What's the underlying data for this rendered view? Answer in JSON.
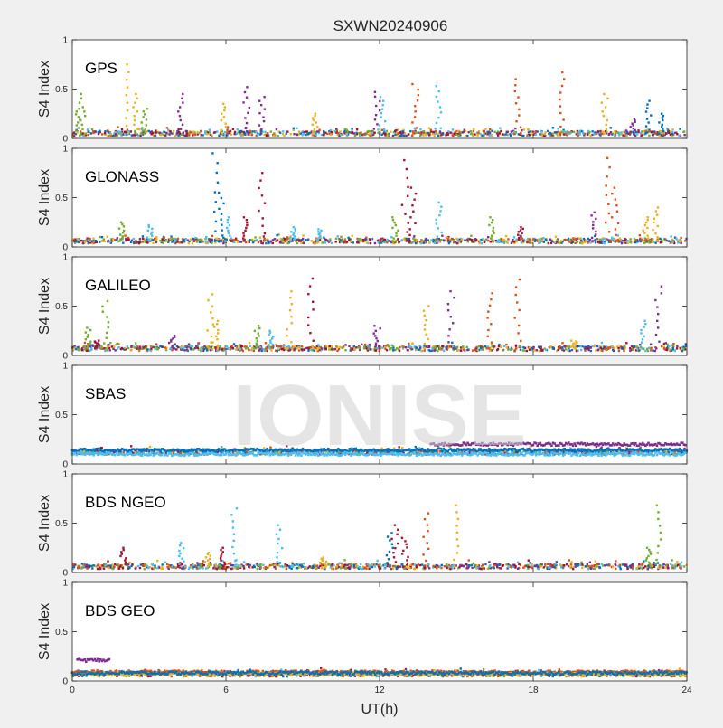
{
  "figure": {
    "title": "SXWN20240906",
    "xlabel": "UT(h)",
    "watermark": "IONISE"
  },
  "colors": [
    "#0072bd",
    "#d95319",
    "#edb120",
    "#7e2f8e",
    "#77ac30",
    "#4dbeee",
    "#a2142f"
  ],
  "chart_data": [
    {
      "type": "scatter",
      "name": "GPS",
      "ylabel": "S4 Index",
      "xlim": [
        0,
        24
      ],
      "ylim": [
        0,
        1
      ],
      "xticks": [
        0,
        6,
        12,
        18,
        24
      ],
      "yticks": [
        0,
        0.5,
        1
      ],
      "baseline": 0.05,
      "spikes": [
        {
          "x": 0.4,
          "y": 0.45,
          "c": 4
        },
        {
          "x": 0.2,
          "y": 0.3,
          "c": 4
        },
        {
          "x": 2.1,
          "y": 0.75,
          "c": 2
        },
        {
          "x": 2.5,
          "y": 0.45,
          "c": 2
        },
        {
          "x": 2.8,
          "y": 0.3,
          "c": 4
        },
        {
          "x": 4.2,
          "y": 0.45,
          "c": 3
        },
        {
          "x": 5.9,
          "y": 0.35,
          "c": 2
        },
        {
          "x": 6.8,
          "y": 0.52,
          "c": 3
        },
        {
          "x": 7.4,
          "y": 0.42,
          "c": 3
        },
        {
          "x": 9.5,
          "y": 0.25,
          "c": 2
        },
        {
          "x": 11.9,
          "y": 0.47,
          "c": 3
        },
        {
          "x": 12.1,
          "y": 0.42,
          "c": 5
        },
        {
          "x": 13.4,
          "y": 0.55,
          "c": 1
        },
        {
          "x": 14.3,
          "y": 0.53,
          "c": 5
        },
        {
          "x": 17.4,
          "y": 0.6,
          "c": 1
        },
        {
          "x": 19.1,
          "y": 0.67,
          "c": 1
        },
        {
          "x": 20.8,
          "y": 0.45,
          "c": 2
        },
        {
          "x": 22.5,
          "y": 0.38,
          "c": 0
        },
        {
          "x": 23.0,
          "y": 0.25,
          "c": 0
        },
        {
          "x": 21.9,
          "y": 0.2,
          "c": 3
        }
      ]
    },
    {
      "type": "scatter",
      "name": "GLONASS",
      "ylabel": "S4 Index",
      "xlim": [
        0,
        24
      ],
      "ylim": [
        0,
        1
      ],
      "xticks": [
        0,
        6,
        12,
        18,
        24
      ],
      "yticks": [
        0,
        0.5,
        1
      ],
      "baseline": 0.06,
      "spikes": [
        {
          "x": 5.6,
          "y": 0.95,
          "c": 0
        },
        {
          "x": 5.8,
          "y": 0.55,
          "c": 0
        },
        {
          "x": 6.1,
          "y": 0.3,
          "c": 5
        },
        {
          "x": 6.7,
          "y": 0.3,
          "c": 6
        },
        {
          "x": 7.4,
          "y": 0.75,
          "c": 6
        },
        {
          "x": 8.6,
          "y": 0.2,
          "c": 5
        },
        {
          "x": 9.6,
          "y": 0.18,
          "c": 5
        },
        {
          "x": 12.6,
          "y": 0.3,
          "c": 4
        },
        {
          "x": 13.0,
          "y": 0.88,
          "c": 6
        },
        {
          "x": 13.3,
          "y": 0.6,
          "c": 6
        },
        {
          "x": 14.3,
          "y": 0.45,
          "c": 5
        },
        {
          "x": 16.4,
          "y": 0.3,
          "c": 4
        },
        {
          "x": 17.5,
          "y": 0.2,
          "c": 6
        },
        {
          "x": 20.4,
          "y": 0.35,
          "c": 3
        },
        {
          "x": 20.9,
          "y": 0.9,
          "c": 1
        },
        {
          "x": 21.2,
          "y": 0.6,
          "c": 1
        },
        {
          "x": 22.4,
          "y": 0.3,
          "c": 2
        },
        {
          "x": 22.8,
          "y": 0.4,
          "c": 2
        },
        {
          "x": 3.0,
          "y": 0.22,
          "c": 5
        },
        {
          "x": 1.9,
          "y": 0.25,
          "c": 4
        }
      ]
    },
    {
      "type": "scatter",
      "name": "GALILEO",
      "ylabel": "S4 Index",
      "xlim": [
        0,
        24
      ],
      "ylim": [
        0,
        1
      ],
      "xticks": [
        0,
        6,
        12,
        18,
        24
      ],
      "yticks": [
        0,
        0.5,
        1
      ],
      "baseline": 0.07,
      "spikes": [
        {
          "x": 0.6,
          "y": 0.28,
          "c": 4
        },
        {
          "x": 1.3,
          "y": 0.55,
          "c": 4
        },
        {
          "x": 1.0,
          "y": 0.15,
          "c": 6
        },
        {
          "x": 3.9,
          "y": 0.2,
          "c": 3
        },
        {
          "x": 5.4,
          "y": 0.62,
          "c": 2
        },
        {
          "x": 5.6,
          "y": 0.35,
          "c": 2
        },
        {
          "x": 7.2,
          "y": 0.3,
          "c": 4
        },
        {
          "x": 7.8,
          "y": 0.25,
          "c": 5
        },
        {
          "x": 8.5,
          "y": 0.65,
          "c": 2
        },
        {
          "x": 9.3,
          "y": 0.78,
          "c": 6
        },
        {
          "x": 11.9,
          "y": 0.3,
          "c": 3
        },
        {
          "x": 13.8,
          "y": 0.5,
          "c": 2
        },
        {
          "x": 14.8,
          "y": 0.65,
          "c": 3
        },
        {
          "x": 16.3,
          "y": 0.63,
          "c": 1
        },
        {
          "x": 17.4,
          "y": 0.77,
          "c": 1
        },
        {
          "x": 22.3,
          "y": 0.35,
          "c": 5
        },
        {
          "x": 22.9,
          "y": 0.7,
          "c": 3
        },
        {
          "x": 19.6,
          "y": 0.15,
          "c": 2
        }
      ]
    },
    {
      "type": "scatter",
      "name": "SBAS",
      "ylabel": "S4 Index",
      "xlim": [
        0,
        24
      ],
      "ylim": [
        0,
        1
      ],
      "xticks": [
        0,
        6,
        12,
        18,
        24
      ],
      "yticks": [
        0,
        0.5,
        1
      ],
      "baseline": 0.12,
      "spikes": [],
      "bumps": [
        {
          "x0": 14.0,
          "x1": 24.0,
          "y": 0.2,
          "c": 3
        },
        {
          "x0": 0.0,
          "x1": 24.0,
          "y": 0.14,
          "c": 0
        },
        {
          "x0": 0.0,
          "x1": 24.0,
          "y": 0.1,
          "c": 5
        }
      ]
    },
    {
      "type": "scatter",
      "name": "BDS NGEO",
      "ylabel": "S4 Index",
      "xlim": [
        0,
        24
      ],
      "ylim": [
        0,
        1
      ],
      "xticks": [
        0,
        6,
        12,
        18,
        24
      ],
      "yticks": [
        0,
        0.5,
        1
      ],
      "baseline": 0.06,
      "spikes": [
        {
          "x": 2.0,
          "y": 0.25,
          "c": 6
        },
        {
          "x": 4.3,
          "y": 0.3,
          "c": 5
        },
        {
          "x": 5.3,
          "y": 0.2,
          "c": 2
        },
        {
          "x": 5.9,
          "y": 0.25,
          "c": 6
        },
        {
          "x": 6.3,
          "y": 0.65,
          "c": 5
        },
        {
          "x": 8.1,
          "y": 0.48,
          "c": 5
        },
        {
          "x": 12.4,
          "y": 0.4,
          "c": 0
        },
        {
          "x": 12.6,
          "y": 0.48,
          "c": 6
        },
        {
          "x": 13.0,
          "y": 0.35,
          "c": 6
        },
        {
          "x": 13.8,
          "y": 0.6,
          "c": 1
        },
        {
          "x": 15.0,
          "y": 0.68,
          "c": 2
        },
        {
          "x": 22.5,
          "y": 0.25,
          "c": 4
        },
        {
          "x": 22.9,
          "y": 0.68,
          "c": 4
        },
        {
          "x": 9.8,
          "y": 0.15,
          "c": 2
        }
      ]
    },
    {
      "type": "scatter",
      "name": "BDS GEO",
      "ylabel": "S4 Index",
      "xlim": [
        0,
        24
      ],
      "ylim": [
        0,
        1
      ],
      "xticks": [
        0,
        6,
        12,
        18,
        24
      ],
      "yticks": [
        0,
        0.5,
        1
      ],
      "baseline": 0.07,
      "spikes": [],
      "bumps": [
        {
          "x0": 0.2,
          "x1": 1.5,
          "y": 0.21,
          "c": 3
        },
        {
          "x0": 0.0,
          "x1": 24.0,
          "y": 0.09,
          "c": 1
        },
        {
          "x0": 0.0,
          "x1": 24.0,
          "y": 0.07,
          "c": 2
        },
        {
          "x0": 0.0,
          "x1": 24.0,
          "y": 0.08,
          "c": 0
        }
      ]
    }
  ]
}
